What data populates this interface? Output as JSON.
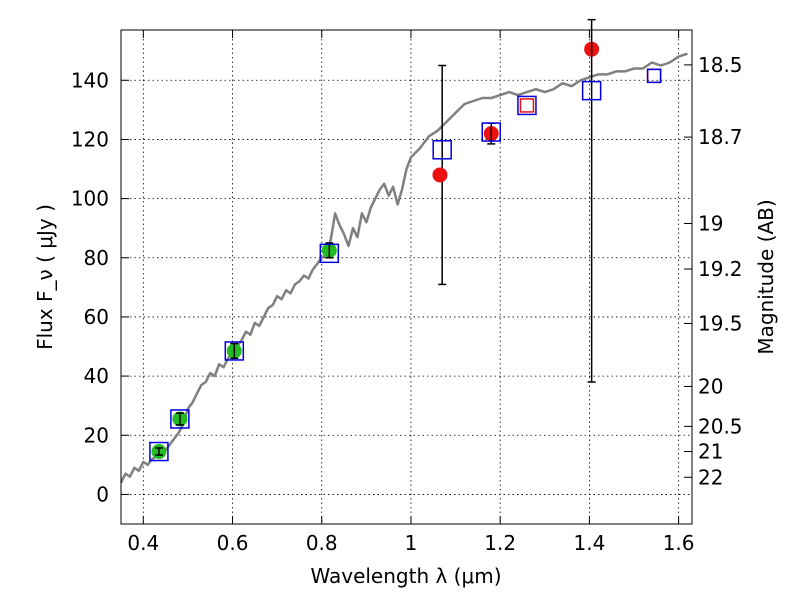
{
  "chart_data": {
    "type": "scatter",
    "title": "",
    "xlabel": "Wavelength λ (μm)",
    "ylabel": "Flux F_ν ( μJy )",
    "ylabel_right": "Magnitude (AB)",
    "xlim": [
      0.35,
      1.63
    ],
    "ylim": [
      -10,
      157
    ],
    "grid": true,
    "x_ticks": [
      0.4,
      0.6,
      0.8,
      1.0,
      1.2,
      1.4,
      1.6
    ],
    "x_tick_labels": [
      "0.4",
      "0.6",
      "0.8",
      "1",
      "1.2",
      "1.4",
      "1.6"
    ],
    "y_ticks": [
      0,
      20,
      40,
      60,
      80,
      100,
      120,
      140
    ],
    "y_tick_labels": [
      "0",
      "20",
      "40",
      "60",
      "80",
      "100",
      "120",
      "140"
    ],
    "right_ticks": [
      {
        "label": "18.5",
        "flux": 145.2
      },
      {
        "label": "18.7",
        "flux": 120.8
      },
      {
        "label": "19",
        "flux": 91.6
      },
      {
        "label": "19.2",
        "flux": 76.2
      },
      {
        "label": "19.5",
        "flux": 57.8
      },
      {
        "label": "20",
        "flux": 36.5
      },
      {
        "label": "20.5",
        "flux": 23.0
      },
      {
        "label": "21",
        "flux": 14.5
      },
      {
        "label": "22",
        "flux": 5.8
      }
    ],
    "series": [
      {
        "name": "model spectrum",
        "kind": "line",
        "color": "#808080",
        "x": [
          0.35,
          0.36,
          0.37,
          0.38,
          0.39,
          0.4,
          0.41,
          0.42,
          0.43,
          0.44,
          0.45,
          0.46,
          0.47,
          0.48,
          0.49,
          0.5,
          0.51,
          0.52,
          0.53,
          0.54,
          0.55,
          0.56,
          0.57,
          0.58,
          0.59,
          0.6,
          0.61,
          0.62,
          0.63,
          0.64,
          0.65,
          0.66,
          0.67,
          0.68,
          0.69,
          0.7,
          0.71,
          0.72,
          0.73,
          0.74,
          0.75,
          0.76,
          0.77,
          0.78,
          0.79,
          0.8,
          0.81,
          0.82,
          0.83,
          0.84,
          0.85,
          0.86,
          0.87,
          0.88,
          0.89,
          0.9,
          0.91,
          0.92,
          0.93,
          0.94,
          0.95,
          0.96,
          0.97,
          0.98,
          0.99,
          1.0,
          1.02,
          1.04,
          1.06,
          1.08,
          1.1,
          1.12,
          1.14,
          1.16,
          1.18,
          1.2,
          1.22,
          1.24,
          1.26,
          1.28,
          1.3,
          1.32,
          1.34,
          1.36,
          1.38,
          1.4,
          1.42,
          1.44,
          1.46,
          1.48,
          1.5,
          1.52,
          1.54,
          1.56,
          1.58,
          1.6,
          1.62
        ],
        "y": [
          4,
          7,
          6,
          9,
          8,
          11,
          10,
          12,
          13,
          14,
          15,
          17,
          19,
          21,
          24,
          29,
          31,
          34,
          37,
          38,
          41,
          40,
          44,
          43,
          46,
          48,
          50,
          52,
          55,
          54,
          58,
          57,
          60,
          63,
          64,
          67,
          66,
          69,
          68,
          71,
          72,
          74,
          73,
          76,
          78,
          80,
          81,
          86,
          95,
          91,
          88,
          84,
          90,
          87,
          95,
          92,
          97,
          100,
          103,
          105,
          101,
          104,
          98,
          103,
          110,
          114,
          117,
          121,
          123,
          126,
          129,
          132,
          133,
          134,
          134,
          135,
          136,
          135,
          136,
          137,
          136,
          137,
          139,
          138,
          140,
          141,
          142,
          142,
          143,
          143,
          144,
          144,
          146,
          145,
          146,
          148,
          149
        ]
      },
      {
        "name": "green points",
        "kind": "point",
        "color": "#22bb22",
        "x": [
          0.435,
          0.482,
          0.604,
          0.817
        ],
        "y": [
          14.5,
          25.5,
          48.5,
          82.5
        ],
        "yerr": [
          1.2,
          2.0,
          2.5,
          2.5
        ]
      },
      {
        "name": "red points",
        "kind": "point",
        "color": "#ee1111",
        "x": [
          1.065,
          1.18,
          1.405
        ],
        "y": [
          108,
          122,
          150.5
        ],
        "yerr_low": [
          null,
          3.5,
          112.5
        ],
        "yerr_high": [
          null,
          3.5,
          10
        ]
      },
      {
        "name": "large error bar",
        "kind": "errorbar",
        "color": "#000000",
        "x": [
          1.07
        ],
        "y": [
          108
        ],
        "yerr_low": [
          37
        ],
        "yerr_high": [
          37
        ]
      },
      {
        "name": "blue open squares",
        "kind": "square",
        "color": "#0000dd",
        "x": [
          0.435,
          0.482,
          0.604,
          0.817,
          1.07,
          1.18,
          1.26,
          1.405
        ],
        "y": [
          14.5,
          25.5,
          48.5,
          81.5,
          116.5,
          122.5,
          131.5,
          136.5
        ]
      },
      {
        "name": "red open squares",
        "kind": "square",
        "color": "#ee1111",
        "x": [
          1.26,
          1.545
        ],
        "y": [
          131.5,
          141.5
        ]
      },
      {
        "name": "blue open squares (small)",
        "kind": "square",
        "color": "#0000dd",
        "x": [
          1.545
        ],
        "y": [
          141.5
        ]
      }
    ]
  }
}
